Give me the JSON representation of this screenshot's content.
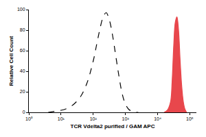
{
  "chart_data": {
    "type": "line",
    "x_label": "TCR Vdelta2 purified / GAM APC",
    "y_label": "Relative Cell Count",
    "log": "x",
    "grid": false,
    "xlim": [
      1,
      160000
    ],
    "xticks": [
      {
        "value": 1,
        "label": "10⁰"
      },
      {
        "value": 10,
        "label": "10¹"
      },
      {
        "value": 100,
        "label": "10²"
      },
      {
        "value": 1000,
        "label": "10³"
      },
      {
        "value": 10000,
        "label": "10⁴"
      },
      {
        "value": 100000,
        "label": "10⁵"
      }
    ],
    "ylim": [
      0,
      100
    ],
    "yticks": [
      0,
      20,
      40,
      60,
      80,
      100
    ],
    "series": [
      {
        "type": "line",
        "line_style": "dashed",
        "color": "#000000",
        "x": [
          4,
          6.3,
          10,
          15.8,
          25.1,
          39.8,
          63.1,
          100,
          125.9,
          158.5,
          199.5,
          251.2,
          316.2,
          398.1,
          501.2,
          631,
          794.3,
          1000,
          1258.9,
          1584.9,
          2511.9
        ],
        "values": [
          0,
          1,
          2,
          4,
          8,
          15,
          28,
          50,
          65,
          80,
          92,
          97,
          90,
          75,
          55,
          35,
          18,
          8,
          3,
          1,
          0
        ]
      },
      {
        "type": "area",
        "line_style": "solid",
        "color": "#e8474c",
        "x": [
          15849,
          19953,
          25119,
          28184,
          31623,
          35481,
          39811,
          44668,
          50119,
          56234,
          63096,
          70795,
          79433
        ],
        "values": [
          0,
          2,
          10,
          30,
          65,
          88,
          93,
          80,
          50,
          25,
          10,
          3,
          0
        ]
      }
    ]
  }
}
